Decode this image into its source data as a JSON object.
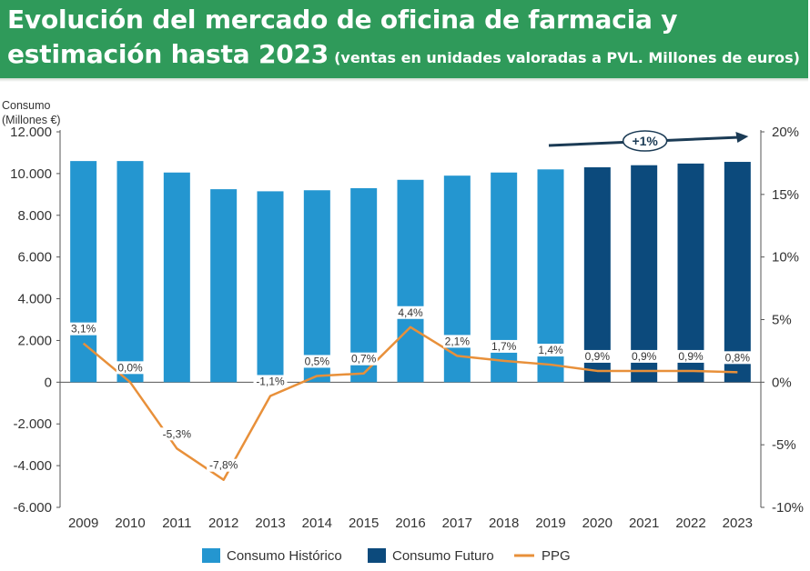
{
  "header": {
    "title_line1": "Evolución del mercado de oficina de farmacia y",
    "title_line2": "estimación hasta 2023",
    "subtitle": "(ventas en unidades valoradas a PVL. Millones de euros)"
  },
  "chart_data": {
    "type": "bar",
    "ylabel_line1": "Consumo",
    "ylabel_line2": "(Millones €)",
    "ylim": [
      -6000,
      12000
    ],
    "y2lim": [
      -10,
      20
    ],
    "y_ticks": [
      "12.000",
      "10.000",
      "8.000",
      "6.000",
      "4.000",
      "2.000",
      "0",
      "-2.000",
      "-4.000",
      "-6.000"
    ],
    "y2_ticks": [
      "20%",
      "15%",
      "10%",
      "5%",
      "0%",
      "-5%",
      "-10%"
    ],
    "categories": [
      "2009",
      "2010",
      "2011",
      "2012",
      "2013",
      "2014",
      "2015",
      "2016",
      "2017",
      "2018",
      "2019",
      "2020",
      "2021",
      "2022",
      "2023"
    ],
    "series": [
      {
        "name": "Consumo Histórico",
        "color": "#2496d0",
        "values": [
          10600,
          10600,
          10050,
          9250,
          9150,
          9200,
          9300,
          9700,
          9900,
          10050,
          10200,
          null,
          null,
          null,
          null
        ]
      },
      {
        "name": "Consumo Futuro",
        "color": "#0c4a7c",
        "values": [
          null,
          null,
          null,
          null,
          null,
          null,
          null,
          null,
          null,
          null,
          null,
          10300,
          10400,
          10480,
          10560
        ]
      },
      {
        "name": "PPG",
        "color": "#e8903a",
        "values": [
          3.1,
          0.0,
          -5.3,
          -7.8,
          -1.1,
          0.5,
          0.7,
          4.4,
          2.1,
          1.7,
          1.4,
          0.9,
          0.9,
          0.9,
          0.8
        ],
        "labels": [
          "3,1%",
          "0,0%",
          "-5,3%",
          "-7,8%",
          "-1,1%",
          "0,5%",
          "0,7%",
          "4,4%",
          "2,1%",
          "1,7%",
          "1,4%",
          "0,9%",
          "0,9%",
          "0,9%",
          "0,8%"
        ]
      }
    ],
    "annotation": "+1%",
    "legend_position": "bottom-center",
    "grid": false
  }
}
